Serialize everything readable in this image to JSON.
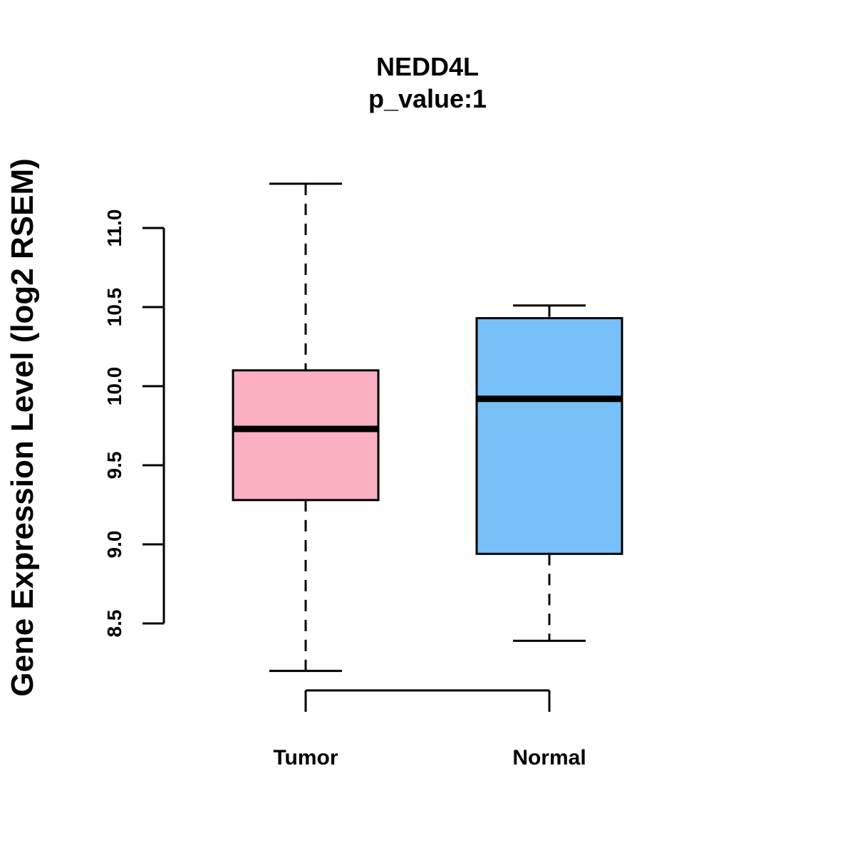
{
  "chart_data": {
    "type": "boxplot",
    "title": "NEDD4L",
    "subtitle": "p_value:1",
    "ylabel": "Gene Expression Level (log2 RSEM)",
    "xlabel": "",
    "ylim": [
      8.5,
      11.0
    ],
    "yticks": [
      8.5,
      9.0,
      9.5,
      10.0,
      10.5,
      11.0
    ],
    "ytick_labels": [
      "8.5",
      "9.0",
      "9.5",
      "10.0",
      "10.5",
      "11.0"
    ],
    "categories": [
      "Tumor",
      "Normal"
    ],
    "series": [
      {
        "name": "Tumor",
        "min": 8.2,
        "q1": 9.28,
        "median": 9.73,
        "q3": 10.1,
        "max": 11.28,
        "color": "#FBB0C1"
      },
      {
        "name": "Normal",
        "min": 8.39,
        "q1": 8.94,
        "median": 9.92,
        "q3": 10.43,
        "max": 10.51,
        "color": "#77C0F8"
      }
    ],
    "grid": false,
    "legend": "none"
  }
}
